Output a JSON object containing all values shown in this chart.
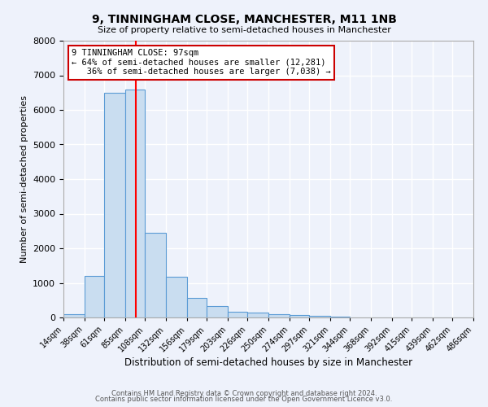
{
  "title1": "9, TINNINGHAM CLOSE, MANCHESTER, M11 1NB",
  "title2": "Size of property relative to semi-detached houses in Manchester",
  "xlabel": "Distribution of semi-detached houses by size in Manchester",
  "ylabel": "Number of semi-detached properties",
  "footer1": "Contains HM Land Registry data © Crown copyright and database right 2024.",
  "footer2": "Contains public sector information licensed under the Open Government Licence v3.0.",
  "bin_edges": [
    14,
    38,
    61,
    85,
    108,
    132,
    156,
    179,
    203,
    226,
    250,
    274,
    297,
    321,
    344,
    368,
    392,
    415,
    439,
    462,
    486
  ],
  "bar_heights": [
    100,
    1200,
    6500,
    6600,
    2450,
    1180,
    570,
    330,
    160,
    130,
    95,
    80,
    55,
    30,
    10,
    5,
    3,
    2,
    1,
    1
  ],
  "bar_color": "#c9ddf0",
  "bar_edge_color": "#5b9bd5",
  "red_line_x": 97,
  "ylim": [
    0,
    8000
  ],
  "annotation_line1": "9 TINNINGHAM CLOSE: 97sqm",
  "annotation_line2": "← 64% of semi-detached houses are smaller (12,281)",
  "annotation_line3": "   36% of semi-detached houses are larger (7,038) →",
  "annotation_box_color": "#ffffff",
  "annotation_box_edge_color": "#cc0000",
  "background_color": "#eef2fb",
  "grid_color": "#ffffff",
  "tick_labels": [
    "14sqm",
    "38sqm",
    "61sqm",
    "85sqm",
    "108sqm",
    "132sqm",
    "156sqm",
    "179sqm",
    "203sqm",
    "226sqm",
    "250sqm",
    "274sqm",
    "297sqm",
    "321sqm",
    "344sqm",
    "368sqm",
    "392sqm",
    "415sqm",
    "439sqm",
    "462sqm",
    "486sqm"
  ]
}
